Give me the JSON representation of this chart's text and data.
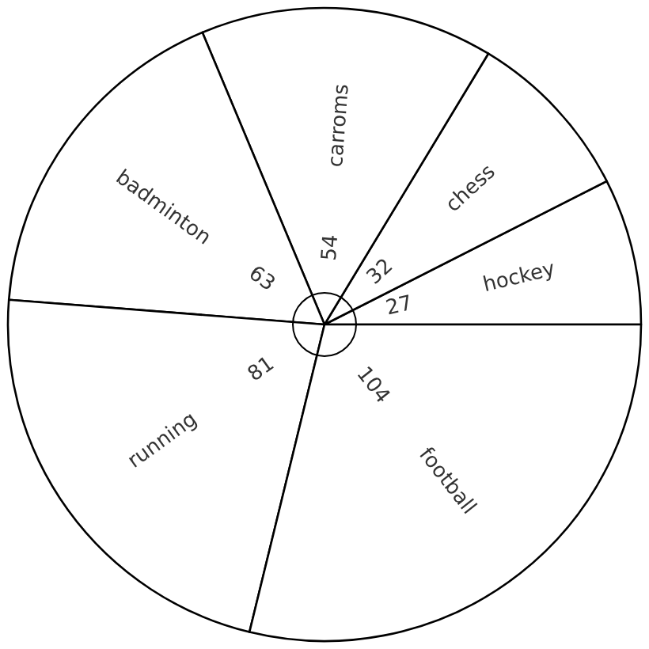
{
  "chart_data": {
    "type": "pie",
    "categories": [
      "hockey",
      "chess",
      "carroms",
      "badminton",
      "running",
      "football"
    ],
    "values": [
      27,
      32,
      54,
      63,
      81,
      104
    ],
    "colors": [
      "#ffffff",
      "#ffffff",
      "#ffffff",
      "#ffffff",
      "#ffffff",
      "#ffffff"
    ],
    "data_labels": true
  }
}
